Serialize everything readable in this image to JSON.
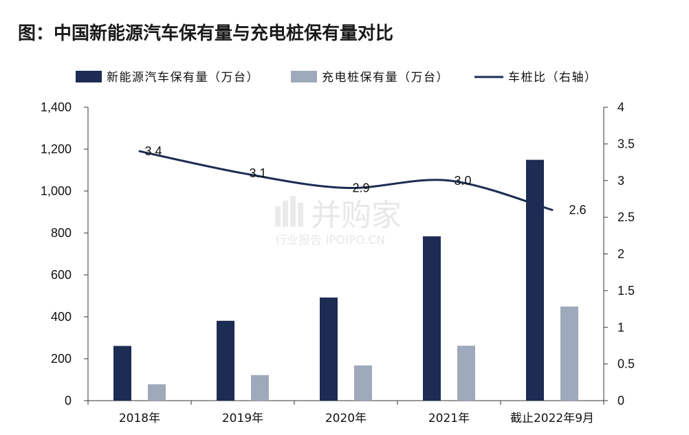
{
  "title": "图：中国新能源汽车保有量与充电桩保有量对比",
  "watermark": {
    "brand": "并购家",
    "sub": "行业报告 IPOIPO.CN"
  },
  "chart_data": {
    "type": "bar",
    "categories": [
      "2018年",
      "2019年",
      "2020年",
      "2021年",
      "截止2022年9月"
    ],
    "series": [
      {
        "name": "新能源汽车保有量（万台）",
        "kind": "bar",
        "axis": "left",
        "color": "#1c2c53",
        "values": [
          261,
          381,
          492,
          784,
          1149
        ]
      },
      {
        "name": "充电桩保有量（万台）",
        "kind": "bar",
        "axis": "left",
        "color": "#9eaabb",
        "values": [
          78,
          122,
          168,
          262,
          449
        ]
      },
      {
        "name": "车桩比（右轴）",
        "kind": "line",
        "axis": "right",
        "color": "#1c2c53",
        "values": [
          3.4,
          3.1,
          2.9,
          3.0,
          2.6
        ],
        "labels": [
          "3.4",
          "3.1",
          "2.9",
          "3.0",
          "2.6"
        ]
      }
    ],
    "yleft": {
      "ylim": [
        0,
        1400
      ],
      "ticks": [
        0,
        200,
        400,
        600,
        800,
        1000,
        1200,
        1400
      ],
      "tick_labels": [
        "0",
        "200",
        "400",
        "600",
        "800",
        "1,000",
        "1,200",
        "1,400"
      ]
    },
    "yright": {
      "ylim": [
        0,
        4
      ],
      "ticks": [
        0,
        0.5,
        1,
        1.5,
        2,
        2.5,
        3,
        3.5,
        4
      ],
      "tick_labels": [
        "0",
        "0.5",
        "1",
        "1.5",
        "2",
        "2.5",
        "3",
        "3.5",
        "4"
      ]
    },
    "legend": "top",
    "grid": false
  }
}
